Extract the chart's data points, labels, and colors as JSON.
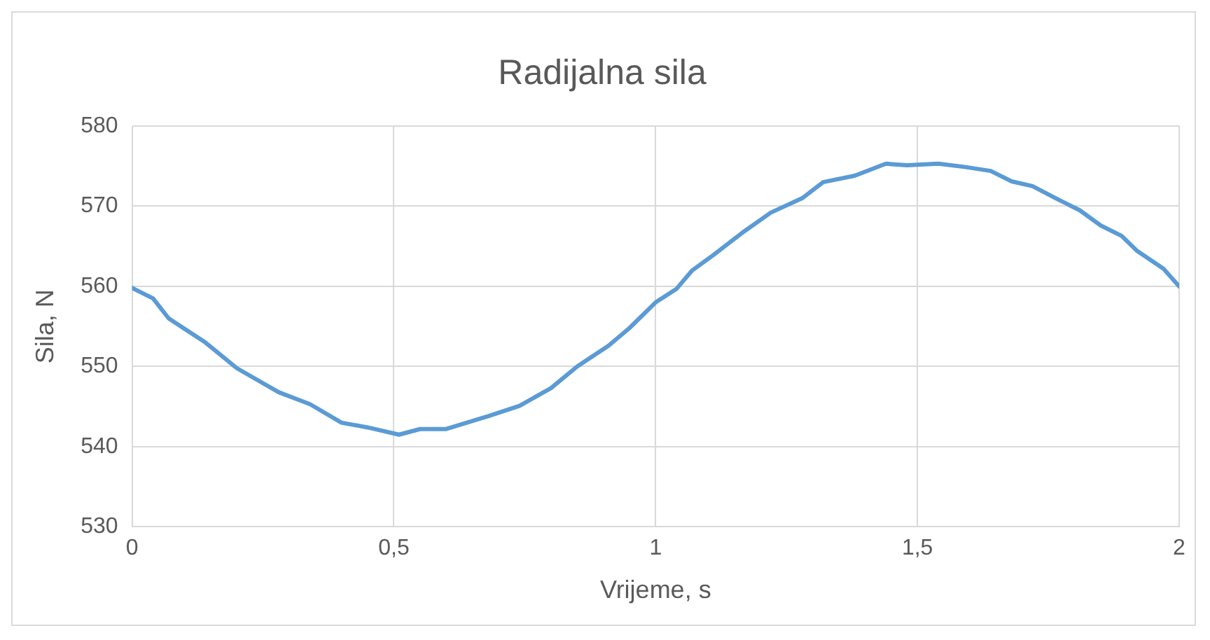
{
  "chart_data": {
    "type": "line",
    "title": "Radijalna sila",
    "xlabel": "Vrijeme, s",
    "ylabel": "Sila, N",
    "xlim": [
      0,
      2
    ],
    "xticks": [
      0,
      {
        "value": 0.5,
        "label": "0,5"
      },
      1,
      {
        "value": 1.5,
        "label": "1,5"
      },
      2
    ],
    "ylim": [
      530,
      580
    ],
    "yticks": [
      530,
      540,
      550,
      560,
      570,
      580
    ],
    "grid": true,
    "legend": false,
    "marker": "none",
    "line_style": "solid",
    "series": [
      {
        "color": "#5b9bd5",
        "x": [
          0,
          0.04,
          0.07,
          0.14,
          0.2,
          0.28,
          0.34,
          0.4,
          0.45,
          0.51,
          0.55,
          0.6,
          0.68,
          0.74,
          0.8,
          0.85,
          0.91,
          0.95,
          1.0,
          1.04,
          1.07,
          1.11,
          1.17,
          1.22,
          1.28,
          1.32,
          1.38,
          1.44,
          1.48,
          1.54,
          1.59,
          1.64,
          1.68,
          1.72,
          1.77,
          1.81,
          1.85,
          1.89,
          1.92,
          1.97,
          2.0
        ],
        "values": [
          559.8,
          558.5,
          556,
          553,
          549.8,
          546.8,
          545.3,
          543,
          542.4,
          541.5,
          542.2,
          542.2,
          543.8,
          545.1,
          547.3,
          550,
          552.6,
          554.8,
          558,
          559.7,
          562,
          563.9,
          566.9,
          569.2,
          571,
          573,
          573.8,
          575.3,
          575.1,
          575.3,
          574.9,
          574.4,
          573.1,
          572.5,
          570.8,
          569.5,
          567.6,
          566.3,
          564.4,
          562.2,
          560
        ]
      }
    ]
  }
}
